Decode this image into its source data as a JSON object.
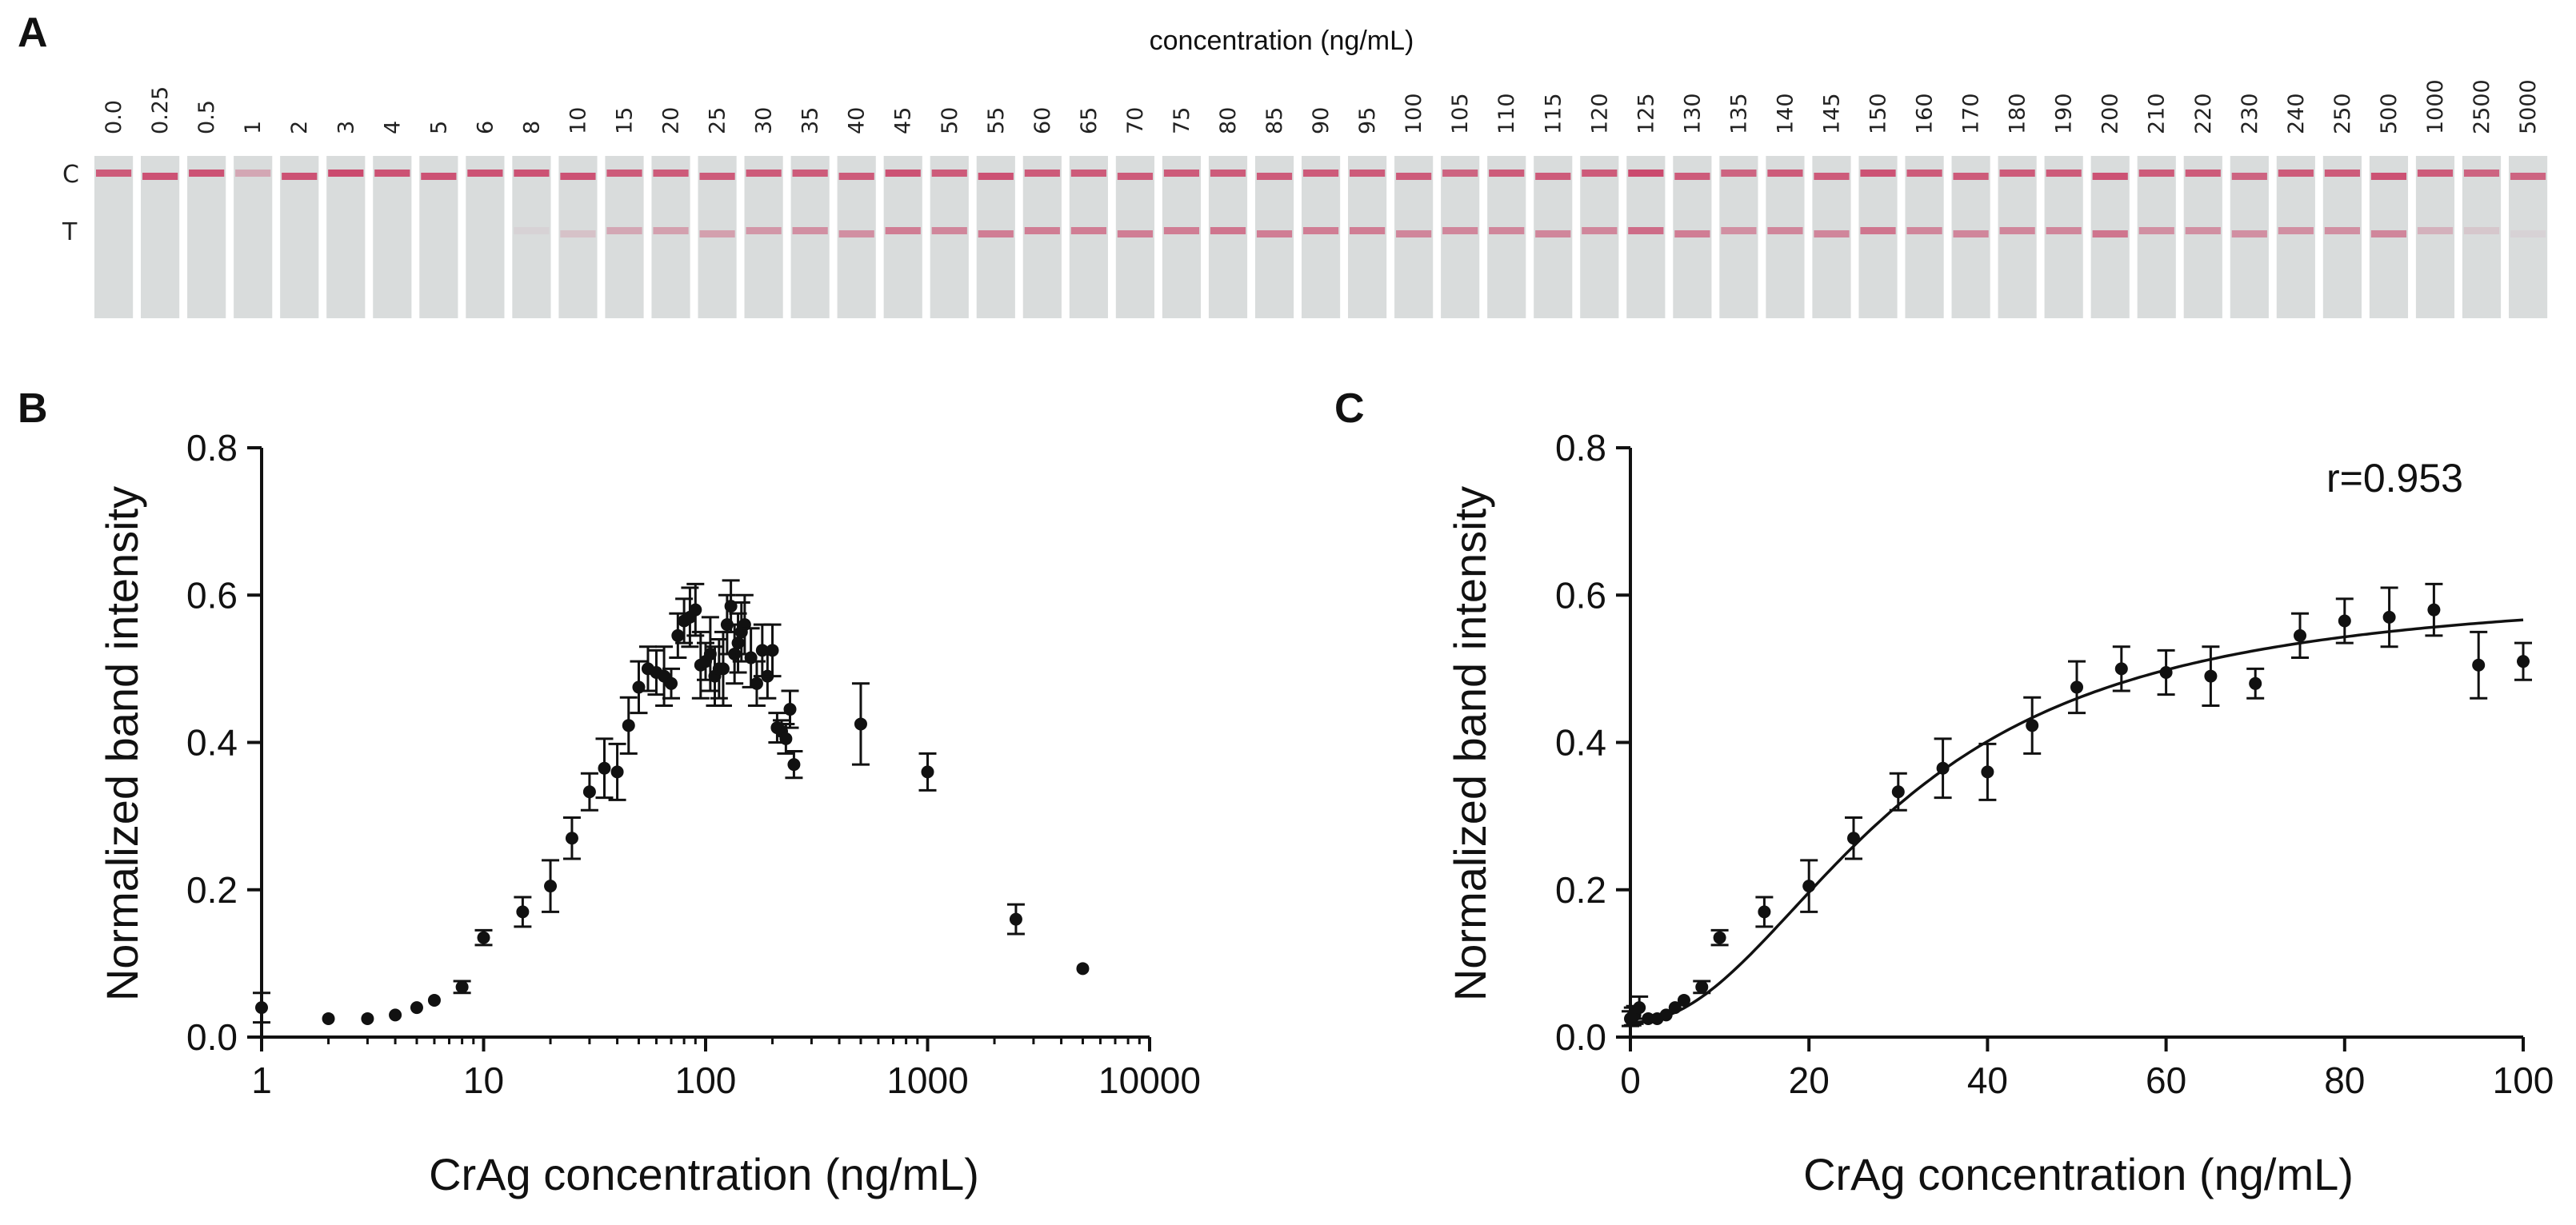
{
  "panels": {
    "a": "A",
    "b": "B",
    "c": "C"
  },
  "strips": {
    "title": "concentration (ng/mL)",
    "c_label": "C",
    "t_label": "T",
    "colors": {
      "strip": "#d9dcdc",
      "band": "#c8305a",
      "gap": "#ffffff"
    },
    "concentrations": [
      "0.0",
      "0.25",
      "0.5",
      "1",
      "2",
      "3",
      "4",
      "5",
      "6",
      "8",
      "10",
      "15",
      "20",
      "25",
      "30",
      "35",
      "40",
      "45",
      "50",
      "55",
      "60",
      "65",
      "70",
      "75",
      "80",
      "85",
      "90",
      "95",
      "100",
      "105",
      "110",
      "115",
      "120",
      "125",
      "130",
      "135",
      "140",
      "145",
      "150",
      "160",
      "170",
      "180",
      "190",
      "200",
      "210",
      "220",
      "230",
      "240",
      "250",
      "500",
      "1000",
      "2500",
      "5000"
    ],
    "c_band_intensity": [
      0.75,
      0.8,
      0.8,
      0.3,
      0.8,
      0.85,
      0.8,
      0.8,
      0.8,
      0.8,
      0.8,
      0.75,
      0.75,
      0.75,
      0.75,
      0.75,
      0.75,
      0.8,
      0.75,
      0.8,
      0.75,
      0.75,
      0.75,
      0.75,
      0.75,
      0.75,
      0.75,
      0.75,
      0.75,
      0.7,
      0.75,
      0.75,
      0.75,
      0.85,
      0.75,
      0.7,
      0.75,
      0.75,
      0.8,
      0.75,
      0.75,
      0.75,
      0.75,
      0.8,
      0.75,
      0.75,
      0.7,
      0.75,
      0.75,
      0.8,
      0.75,
      0.7,
      0.7
    ],
    "t_band_intensity": [
      0,
      0,
      0,
      0,
      0,
      0,
      0,
      0,
      0,
      0.05,
      0.15,
      0.3,
      0.35,
      0.35,
      0.4,
      0.45,
      0.45,
      0.55,
      0.5,
      0.55,
      0.55,
      0.55,
      0.55,
      0.55,
      0.6,
      0.55,
      0.55,
      0.55,
      0.5,
      0.5,
      0.5,
      0.5,
      0.5,
      0.65,
      0.55,
      0.45,
      0.5,
      0.5,
      0.6,
      0.5,
      0.5,
      0.5,
      0.5,
      0.6,
      0.45,
      0.45,
      0.45,
      0.45,
      0.45,
      0.5,
      0.25,
      0.12,
      0.05
    ]
  },
  "chart_data": [
    {
      "panel": "B",
      "type": "scatter",
      "xscale": "log",
      "xlabel": "CrAg concentration (ng/mL)",
      "ylabel": "Normalized band intensity",
      "xlim": [
        1,
        10000
      ],
      "ylim": [
        0,
        0.8
      ],
      "xticks": [
        1,
        10,
        100,
        1000,
        10000
      ],
      "xtick_labels": [
        "1",
        "10",
        "100",
        "1000",
        "10000"
      ],
      "yticks": [
        0,
        0.2,
        0.4,
        0.6,
        0.8
      ],
      "ytick_labels": [
        "0.0",
        "0.2",
        "0.4",
        "0.6",
        "0.8"
      ],
      "points": [
        {
          "x": 1,
          "y": 0.04,
          "err": 0.02
        },
        {
          "x": 2,
          "y": 0.025,
          "err": 0
        },
        {
          "x": 3,
          "y": 0.025,
          "err": 0
        },
        {
          "x": 4,
          "y": 0.03,
          "err": 0
        },
        {
          "x": 5,
          "y": 0.04,
          "err": 0
        },
        {
          "x": 6,
          "y": 0.05,
          "err": 0
        },
        {
          "x": 8,
          "y": 0.068,
          "err": 0.008
        },
        {
          "x": 10,
          "y": 0.135,
          "err": 0.01
        },
        {
          "x": 15,
          "y": 0.17,
          "err": 0.02
        },
        {
          "x": 20,
          "y": 0.205,
          "err": 0.035
        },
        {
          "x": 25,
          "y": 0.27,
          "err": 0.028
        },
        {
          "x": 30,
          "y": 0.333,
          "err": 0.025
        },
        {
          "x": 35,
          "y": 0.365,
          "err": 0.04
        },
        {
          "x": 40,
          "y": 0.36,
          "err": 0.038
        },
        {
          "x": 45,
          "y": 0.423,
          "err": 0.038
        },
        {
          "x": 50,
          "y": 0.475,
          "err": 0.035
        },
        {
          "x": 55,
          "y": 0.5,
          "err": 0.03
        },
        {
          "x": 60,
          "y": 0.495,
          "err": 0.03
        },
        {
          "x": 65,
          "y": 0.49,
          "err": 0.04
        },
        {
          "x": 70,
          "y": 0.48,
          "err": 0.02
        },
        {
          "x": 75,
          "y": 0.545,
          "err": 0.03
        },
        {
          "x": 80,
          "y": 0.565,
          "err": 0.03
        },
        {
          "x": 85,
          "y": 0.57,
          "err": 0.04
        },
        {
          "x": 90,
          "y": 0.58,
          "err": 0.035
        },
        {
          "x": 95,
          "y": 0.505,
          "err": 0.045
        },
        {
          "x": 100,
          "y": 0.51,
          "err": 0.025
        },
        {
          "x": 105,
          "y": 0.52,
          "err": 0.05
        },
        {
          "x": 110,
          "y": 0.49,
          "err": 0.04
        },
        {
          "x": 115,
          "y": 0.5,
          "err": 0.04
        },
        {
          "x": 120,
          "y": 0.5,
          "err": 0.05
        },
        {
          "x": 125,
          "y": 0.56,
          "err": 0.04
        },
        {
          "x": 130,
          "y": 0.585,
          "err": 0.035
        },
        {
          "x": 135,
          "y": 0.52,
          "err": 0.04
        },
        {
          "x": 140,
          "y": 0.535,
          "err": 0.04
        },
        {
          "x": 145,
          "y": 0.55,
          "err": 0.04
        },
        {
          "x": 150,
          "y": 0.56,
          "err": 0.04
        },
        {
          "x": 160,
          "y": 0.515,
          "err": 0.04
        },
        {
          "x": 170,
          "y": 0.48,
          "err": 0.03
        },
        {
          "x": 180,
          "y": 0.525,
          "err": 0.035
        },
        {
          "x": 190,
          "y": 0.49,
          "err": 0.03
        },
        {
          "x": 200,
          "y": 0.525,
          "err": 0.035
        },
        {
          "x": 210,
          "y": 0.42,
          "err": 0.02
        },
        {
          "x": 220,
          "y": 0.415,
          "err": 0.015
        },
        {
          "x": 230,
          "y": 0.405,
          "err": 0.02
        },
        {
          "x": 240,
          "y": 0.445,
          "err": 0.025
        },
        {
          "x": 250,
          "y": 0.37,
          "err": 0.018
        },
        {
          "x": 500,
          "y": 0.425,
          "err": 0.055
        },
        {
          "x": 1000,
          "y": 0.36,
          "err": 0.025
        },
        {
          "x": 2500,
          "y": 0.16,
          "err": 0.02
        },
        {
          "x": 5000,
          "y": 0.093,
          "err": 0
        }
      ]
    },
    {
      "panel": "C",
      "type": "scatter",
      "xscale": "linear",
      "xlabel": "CrAg concentration (ng/mL)",
      "ylabel": "Normalized band intensity",
      "xlim": [
        0,
        100
      ],
      "ylim": [
        0,
        0.8
      ],
      "xticks": [
        0,
        20,
        40,
        60,
        80,
        100
      ],
      "xtick_labels": [
        "0",
        "20",
        "40",
        "60",
        "80",
        "100"
      ],
      "yticks": [
        0,
        0.2,
        0.4,
        0.6,
        0.8
      ],
      "ytick_labels": [
        "0.0",
        "0.2",
        "0.4",
        "0.6",
        "0.8"
      ],
      "annotation": "r=0.953",
      "fit": {
        "type": "hill",
        "bottom": 0.02,
        "top": 0.61,
        "ec50": 30,
        "hill": 2.1
      },
      "points": [
        {
          "x": 0,
          "y": 0.025,
          "err": 0.01
        },
        {
          "x": 0.25,
          "y": 0.028,
          "err": 0.012
        },
        {
          "x": 0.5,
          "y": 0.03,
          "err": 0.012
        },
        {
          "x": 1,
          "y": 0.04,
          "err": 0.015
        },
        {
          "x": 2,
          "y": 0.025,
          "err": 0
        },
        {
          "x": 3,
          "y": 0.025,
          "err": 0
        },
        {
          "x": 4,
          "y": 0.03,
          "err": 0
        },
        {
          "x": 5,
          "y": 0.04,
          "err": 0
        },
        {
          "x": 6,
          "y": 0.05,
          "err": 0
        },
        {
          "x": 8,
          "y": 0.068,
          "err": 0.008
        },
        {
          "x": 10,
          "y": 0.135,
          "err": 0.01
        },
        {
          "x": 15,
          "y": 0.17,
          "err": 0.02
        },
        {
          "x": 20,
          "y": 0.205,
          "err": 0.035
        },
        {
          "x": 25,
          "y": 0.27,
          "err": 0.028
        },
        {
          "x": 30,
          "y": 0.333,
          "err": 0.025
        },
        {
          "x": 35,
          "y": 0.365,
          "err": 0.04
        },
        {
          "x": 40,
          "y": 0.36,
          "err": 0.038
        },
        {
          "x": 45,
          "y": 0.423,
          "err": 0.038
        },
        {
          "x": 50,
          "y": 0.475,
          "err": 0.035
        },
        {
          "x": 55,
          "y": 0.5,
          "err": 0.03
        },
        {
          "x": 60,
          "y": 0.495,
          "err": 0.03
        },
        {
          "x": 65,
          "y": 0.49,
          "err": 0.04
        },
        {
          "x": 70,
          "y": 0.48,
          "err": 0.02
        },
        {
          "x": 75,
          "y": 0.545,
          "err": 0.03
        },
        {
          "x": 80,
          "y": 0.565,
          "err": 0.03
        },
        {
          "x": 85,
          "y": 0.57,
          "err": 0.04
        },
        {
          "x": 90,
          "y": 0.58,
          "err": 0.035
        },
        {
          "x": 95,
          "y": 0.505,
          "err": 0.045
        },
        {
          "x": 100,
          "y": 0.51,
          "err": 0.025
        }
      ]
    }
  ]
}
